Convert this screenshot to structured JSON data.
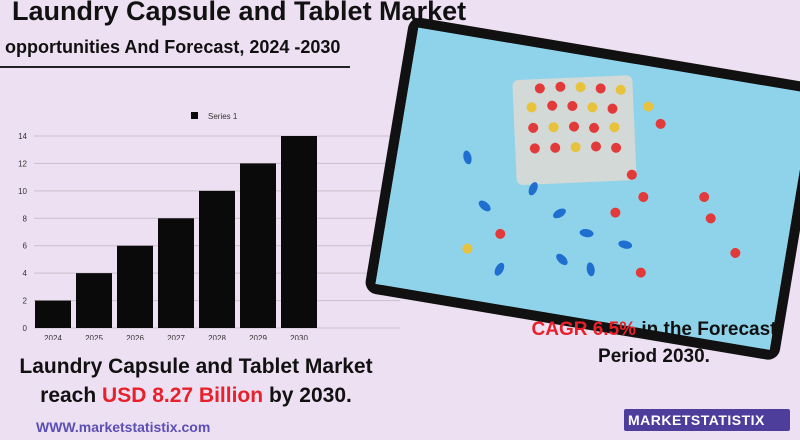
{
  "header": {
    "title": "Laundry Capsule and Tablet Market",
    "subtitle": "opportunities And Forecast, 2024 -2030"
  },
  "chart_data": {
    "type": "bar",
    "categories": [
      "2024",
      "2025",
      "2026",
      "2027",
      "2028",
      "2029",
      "2030"
    ],
    "series": [
      {
        "name": "Series 1",
        "values": [
          2,
          4,
          6,
          8,
          10,
          12,
          14
        ]
      }
    ],
    "ylim": [
      0,
      14
    ],
    "yticks": [
      0,
      2,
      4,
      6,
      8,
      10,
      12,
      14
    ],
    "grid": true,
    "legend": "top",
    "bar_color": "#0a0a0a"
  },
  "cagr": {
    "value": "CAGR 6.5%",
    "rest_line1": "in the  Forecast",
    "line2": "Period  2030."
  },
  "reach": {
    "line1": "Laundry Capsule and Tablet Market",
    "prefix": "reach",
    "amount": "USD 8.27 Billion",
    "suffix": "by 2030."
  },
  "footer": {
    "website": "WWW.marketstatistix.com",
    "brand_part1": "MARKET",
    "brand_part2": "STATISTIX"
  },
  "colors": {
    "background": "#eee0f3",
    "accent_red": "#e8202a",
    "brand_purple": "#4d3e9c",
    "photo_bg": "#8fd3ea"
  }
}
